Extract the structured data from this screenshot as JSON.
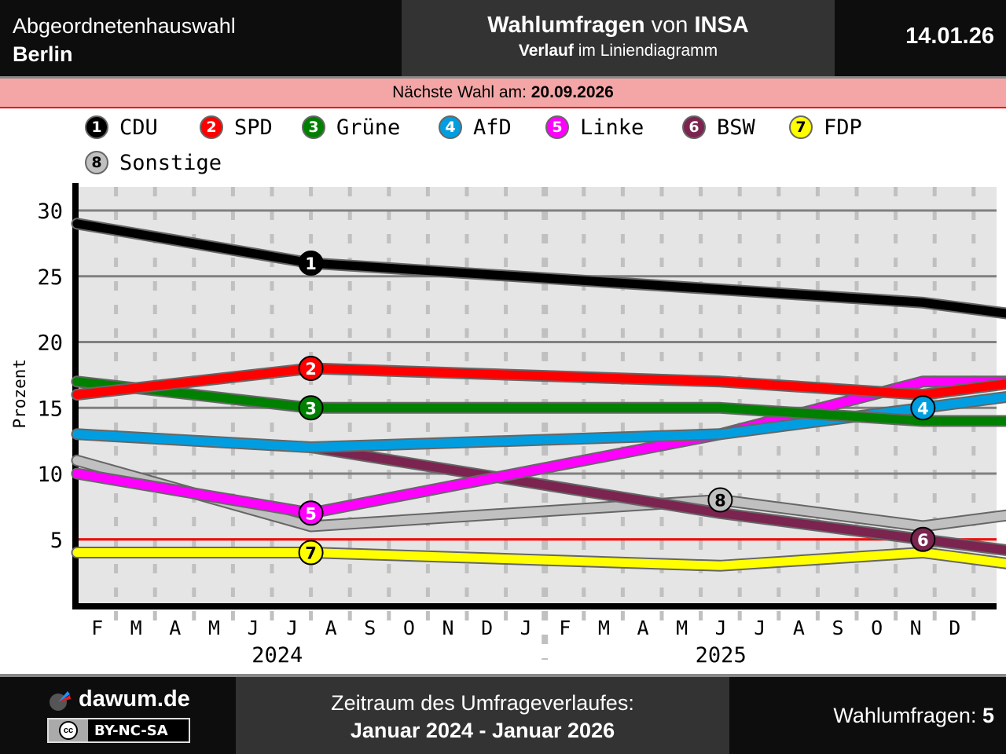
{
  "header": {
    "election_type": "Abgeordnetenhauswahl",
    "region": "Berlin",
    "title_bold1": "Wahlumfragen",
    "title_mid": " von ",
    "title_bold2": "INSA",
    "subtitle_bold": "Verlauf",
    "subtitle_rest": " im Liniendiagramm",
    "date": "14.01.26"
  },
  "next_election": {
    "label": "Nächste Wahl am: ",
    "date": "20.09.2026"
  },
  "footer": {
    "brand": "dawum.de",
    "license": "BY-NC-SA",
    "license_icon": "cc",
    "period_label": "Zeitraum des Umfrageverlaufes:",
    "period_value": "Januar 2024 - Januar 2026",
    "polls_label": "Wahlumfragen: ",
    "polls_count": "5"
  },
  "chart_data": {
    "type": "line",
    "title": "Wahlumfragen von INSA – Verlauf im Liniendiagramm",
    "xlabel": "",
    "ylabel": "Prozent",
    "ylim": [
      0,
      32
    ],
    "yticks": [
      5,
      10,
      15,
      20,
      25,
      30
    ],
    "grid": true,
    "threshold": 5,
    "threshold_color": "#ff0000",
    "legend_position": "top",
    "x_range": [
      "2024-01",
      "2026-01"
    ],
    "month_labels": [
      "F",
      "M",
      "A",
      "M",
      "J",
      "J",
      "A",
      "S",
      "O",
      "N",
      "D",
      "J",
      "F",
      "M",
      "A",
      "M",
      "J",
      "J",
      "A",
      "S",
      "O",
      "N",
      "D"
    ],
    "year_labels": [
      {
        "label": "2024",
        "center_month": 5.5
      },
      {
        "label": "2025",
        "center_month": 17
      }
    ],
    "x": [
      0,
      6,
      16.5,
      21.7,
      24.3
    ],
    "x_dates": [
      "Jan 2024",
      "Jul 2024",
      "Mai 2025",
      "Okt 2025",
      "Jan 2026"
    ],
    "series": [
      {
        "num": "1",
        "name": "CDU",
        "color": "#000000",
        "text": "#ffffff",
        "values": [
          29,
          26,
          24,
          23,
          22
        ],
        "marker_index": 1
      },
      {
        "num": "2",
        "name": "SPD",
        "color": "#ff0000",
        "text": "#ffffff",
        "values": [
          16,
          18,
          17,
          16,
          17
        ],
        "marker_index": 1
      },
      {
        "num": "3",
        "name": "Grüne",
        "color": "#008000",
        "text": "#ffffff",
        "values": [
          17,
          15,
          15,
          14,
          14
        ],
        "marker_index": 1
      },
      {
        "num": "4",
        "name": "AfD",
        "color": "#009ee0",
        "text": "#ffffff",
        "values": [
          13,
          12,
          13,
          15,
          16
        ],
        "marker_index": 3
      },
      {
        "num": "5",
        "name": "Linke",
        "color": "#ff00ff",
        "text": "#ffffff",
        "values": [
          10,
          7,
          13,
          17,
          17
        ],
        "marker_index": 1
      },
      {
        "num": "6",
        "name": "BSW",
        "color": "#7b2450",
        "text": "#ffffff",
        "values": [
          null,
          12,
          7,
          5,
          4
        ],
        "marker_index": 3
      },
      {
        "num": "7",
        "name": "FDP",
        "color": "#ffff00",
        "text": "#000000",
        "values": [
          4,
          4,
          3,
          4,
          3
        ],
        "marker_index": 1
      },
      {
        "num": "8",
        "name": "Sonstige",
        "color": "#c0c0c0",
        "text": "#000000",
        "values": [
          11,
          6,
          8,
          6,
          7
        ],
        "marker_index": 2
      }
    ]
  }
}
